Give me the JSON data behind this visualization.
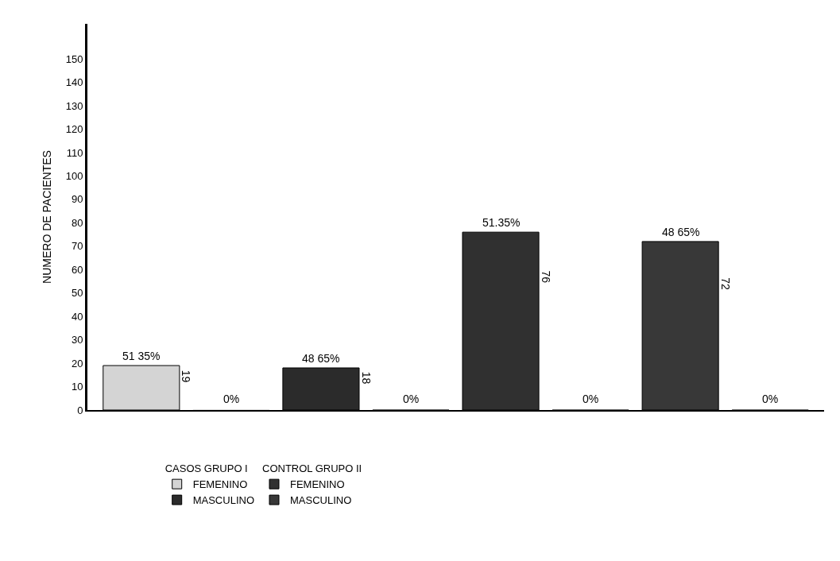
{
  "chart_data": {
    "type": "bar",
    "ylabel": "NUMERO DE PACIENTES",
    "categories": [
      null,
      null,
      null,
      null,
      null,
      null,
      null,
      null
    ],
    "series": [
      {
        "name": "FEMENINO",
        "color": "#d4d4d4",
        "values": [
          19,
          0,
          null,
          null,
          null,
          null,
          null,
          null
        ],
        "value_labels": [
          "19",
          "0%",
          null,
          null,
          null,
          null,
          null,
          null
        ]
      },
      {
        "name": "MASCULINO",
        "color": "#2b2b2b",
        "values": [
          null,
          null,
          18,
          0,
          null,
          null,
          null,
          null
        ],
        "value_labels": [
          null,
          null,
          "18",
          "0%",
          null,
          null,
          null,
          null
        ]
      },
      {
        "name": "FEMENINO",
        "color": "#303030",
        "values": [
          null,
          null,
          null,
          null,
          76,
          0,
          null,
          null
        ],
        "value_labels": [
          null,
          null,
          null,
          null,
          "76",
          "0%",
          null,
          null
        ]
      },
      {
        "name": "MASCULINO",
        "color": "#383838",
        "values": [
          null,
          null,
          null,
          null,
          null,
          null,
          72,
          0
        ],
        "value_labels": [
          null,
          null,
          null,
          null,
          null,
          null,
          "72",
          "0%"
        ]
      }
    ],
    "ylim": [
      0,
      165
    ],
    "yticks": [
      0,
      10,
      20,
      30,
      40,
      50,
      60,
      70,
      80,
      90,
      100,
      110,
      120,
      130,
      140,
      150
    ],
    "legend": "bottom",
    "annotations": [
      "CASOS GRUPO I",
      "CONTROL GRUPO II",
      "51 35%",
      "48 65%",
      "51.35%",
      "48 65%"
    ]
  }
}
